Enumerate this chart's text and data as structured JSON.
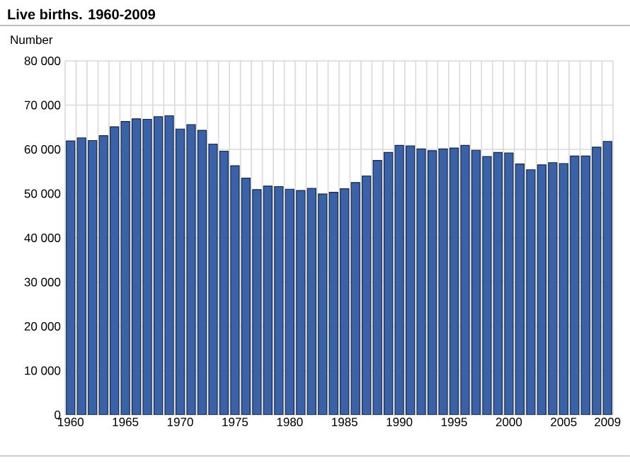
{
  "chart_data": {
    "type": "bar",
    "title": "Live births. 1960-2009",
    "ylabel": "Number",
    "categories": [
      "1960",
      null,
      null,
      null,
      null,
      "1965",
      null,
      null,
      null,
      null,
      "1970",
      null,
      null,
      null,
      null,
      "1975",
      null,
      null,
      null,
      null,
      "1980",
      null,
      null,
      null,
      null,
      "1985",
      null,
      null,
      null,
      null,
      "1990",
      null,
      null,
      null,
      null,
      "1995",
      null,
      null,
      null,
      null,
      "2000",
      null,
      null,
      null,
      null,
      "2005",
      null,
      null,
      null,
      "2009"
    ],
    "values": [
      61900,
      62600,
      62000,
      63100,
      65100,
      66300,
      66900,
      66800,
      67400,
      67600,
      64600,
      65600,
      64300,
      61200,
      59600,
      56300,
      53500,
      50900,
      51700,
      51600,
      51000,
      50700,
      51200,
      49900,
      50300,
      51100,
      52500,
      54000,
      57500,
      59300,
      60900,
      60800,
      60100,
      59700,
      60100,
      60300,
      60900,
      59800,
      58400,
      59300,
      59200,
      56700,
      55400,
      56500,
      57000,
      56800,
      58500,
      58500,
      60500,
      61800
    ],
    "color": "#3a62a8",
    "ylim": [
      0,
      80000
    ],
    "yticks": [
      {
        "value": 0,
        "label": "0"
      },
      {
        "value": 10000,
        "label": "10 000"
      },
      {
        "value": 20000,
        "label": "20 000"
      },
      {
        "value": 30000,
        "label": "30 000"
      },
      {
        "value": 40000,
        "label": "40 000"
      },
      {
        "value": 50000,
        "label": "50 000"
      },
      {
        "value": 60000,
        "label": "60 000"
      },
      {
        "value": 70000,
        "label": "70 000"
      },
      {
        "value": 80000,
        "label": "80 000"
      }
    ],
    "grid": true
  }
}
